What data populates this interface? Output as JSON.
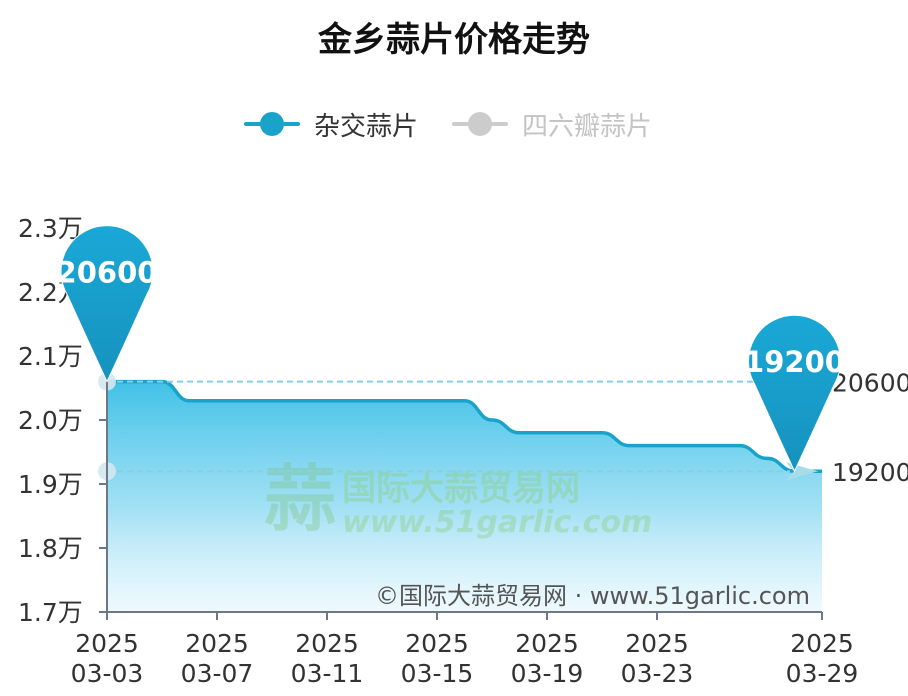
{
  "chart_data": {
    "type": "area",
    "title": "金乡蒜片价格走势",
    "series": [
      {
        "name": "杂交蒜片",
        "color": "#1aa3c9",
        "x": [
          "2025-03-03",
          "2025-03-04",
          "2025-03-05",
          "2025-03-06",
          "2025-03-07",
          "2025-03-08",
          "2025-03-09",
          "2025-03-10",
          "2025-03-11",
          "2025-03-12",
          "2025-03-13",
          "2025-03-14",
          "2025-03-15",
          "2025-03-16",
          "2025-03-17",
          "2025-03-18",
          "2025-03-19",
          "2025-03-20",
          "2025-03-21",
          "2025-03-22",
          "2025-03-23",
          "2025-03-24",
          "2025-03-25",
          "2025-03-26",
          "2025-03-27",
          "2025-03-28",
          "2025-03-29"
        ],
        "values": [
          20600,
          20600,
          20600,
          20300,
          20300,
          20300,
          20300,
          20300,
          20300,
          20300,
          20300,
          20300,
          20300,
          20300,
          20000,
          19800,
          19800,
          19800,
          19800,
          19600,
          19600,
          19600,
          19600,
          19600,
          19400,
          19200,
          19200
        ]
      },
      {
        "name": "四六瓣蒜片",
        "color": "#cccccc",
        "visible": false
      }
    ],
    "ylim": [
      17000,
      23000
    ],
    "y_ticks": [
      {
        "value": 17000,
        "label": "1.7万"
      },
      {
        "value": 18000,
        "label": "1.8万"
      },
      {
        "value": 19000,
        "label": "1.9万"
      },
      {
        "value": 20000,
        "label": "2.0万"
      },
      {
        "value": 21000,
        "label": "2.1万"
      },
      {
        "value": 22000,
        "label": "2.2万"
      },
      {
        "value": 23000,
        "label": "2.3万"
      }
    ],
    "x_ticks": [
      {
        "x": "2025-03-03",
        "year": "2025",
        "md": "03-03"
      },
      {
        "x": "2025-03-07",
        "year": "2025",
        "md": "03-07"
      },
      {
        "x": "2025-03-11",
        "year": "2025",
        "md": "03-11"
      },
      {
        "x": "2025-03-15",
        "year": "2025",
        "md": "03-15"
      },
      {
        "x": "2025-03-19",
        "year": "2025",
        "md": "03-19"
      },
      {
        "x": "2025-03-23",
        "year": "2025",
        "md": "03-23"
      },
      {
        "x": "2025-03-29",
        "year": "2025",
        "md": "03-29"
      }
    ],
    "mark_points": [
      {
        "x": "2025-03-03",
        "value": 20600,
        "label": "20600"
      },
      {
        "x": "2025-03-28",
        "value": 19200,
        "label": "19200"
      }
    ],
    "mark_lines": [
      {
        "value": 20600,
        "label": "20600"
      },
      {
        "value": 19200,
        "label": "19200"
      }
    ],
    "legend_position": "top-center",
    "grid": false
  },
  "watermark": {
    "logo_char": "蒜",
    "name": "国际大蒜贸易网",
    "url": "www.51garlic.com"
  },
  "copyright": "©国际大蒜贸易网 · www.51garlic.com"
}
